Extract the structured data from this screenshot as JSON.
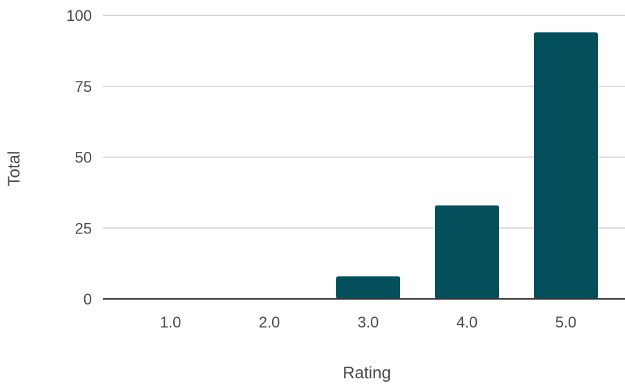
{
  "chart_data": {
    "type": "bar",
    "categories": [
      "1.0",
      "2.0",
      "3.0",
      "4.0",
      "5.0"
    ],
    "values": [
      0,
      0,
      8,
      33,
      94
    ],
    "title": "",
    "xlabel": "Rating",
    "ylabel": "Total",
    "ylim": [
      0,
      100
    ],
    "yticks": [
      "0",
      "25",
      "50",
      "75",
      "100"
    ],
    "ytick_values": [
      0,
      25,
      50,
      75,
      100
    ],
    "grid": true,
    "legend": "none",
    "bar_color": "#03505c"
  }
}
